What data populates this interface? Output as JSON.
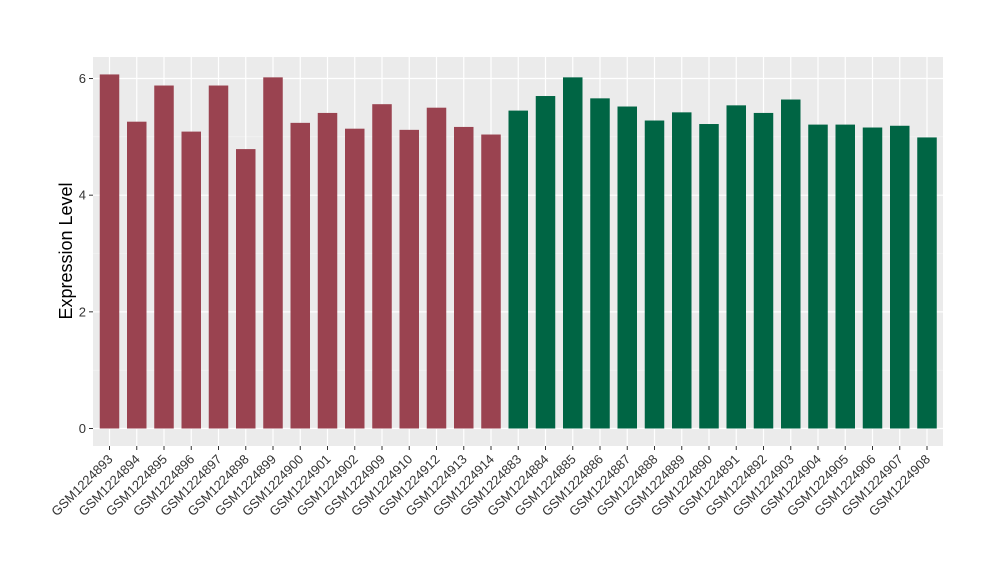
{
  "chart_data": {
    "type": "bar",
    "title": "",
    "xlabel": "",
    "ylabel": "Expression Level",
    "ylim": [
      0,
      6.25
    ],
    "yticks": [
      0,
      2,
      4,
      6
    ],
    "grid": true,
    "categories": [
      "GSM1224893",
      "GSM1224894",
      "GSM1224895",
      "GSM1224896",
      "GSM1224897",
      "GSM1224898",
      "GSM1224899",
      "GSM1224900",
      "GSM1224901",
      "GSM1224902",
      "GSM1224909",
      "GSM1224910",
      "GSM1224912",
      "GSM1224913",
      "GSM1224914",
      "GSM1224883",
      "GSM1224884",
      "GSM1224885",
      "GSM1224886",
      "GSM1224887",
      "GSM1224888",
      "GSM1224889",
      "GSM1224890",
      "GSM1224891",
      "GSM1224892",
      "GSM1224903",
      "GSM1224904",
      "GSM1224905",
      "GSM1224906",
      "GSM1224907",
      "GSM1224908"
    ],
    "values": [
      6.07,
      5.26,
      5.88,
      5.09,
      5.88,
      4.79,
      6.02,
      5.24,
      5.41,
      5.14,
      5.56,
      5.12,
      5.5,
      5.17,
      5.04,
      5.45,
      5.7,
      6.02,
      5.66,
      5.52,
      5.28,
      5.42,
      5.22,
      5.54,
      5.41,
      5.64,
      5.21,
      5.21,
      5.16,
      5.19,
      4.99
    ],
    "bar_colors": [
      "#9a4350",
      "#9a4350",
      "#9a4350",
      "#9a4350",
      "#9a4350",
      "#9a4350",
      "#9a4350",
      "#9a4350",
      "#9a4350",
      "#9a4350",
      "#9a4350",
      "#9a4350",
      "#9a4350",
      "#9a4350",
      "#9a4350",
      "#006544",
      "#006544",
      "#006544",
      "#006544",
      "#006544",
      "#006544",
      "#006544",
      "#006544",
      "#006544",
      "#006544",
      "#006544",
      "#006544",
      "#006544",
      "#006544",
      "#006544",
      "#006544"
    ],
    "colors": {
      "panel_background": "#ebebeb",
      "grid_major": "#ffffff",
      "grid_minor": "#f5f5f5",
      "group_1": "#9a4350",
      "group_2": "#006544"
    }
  }
}
